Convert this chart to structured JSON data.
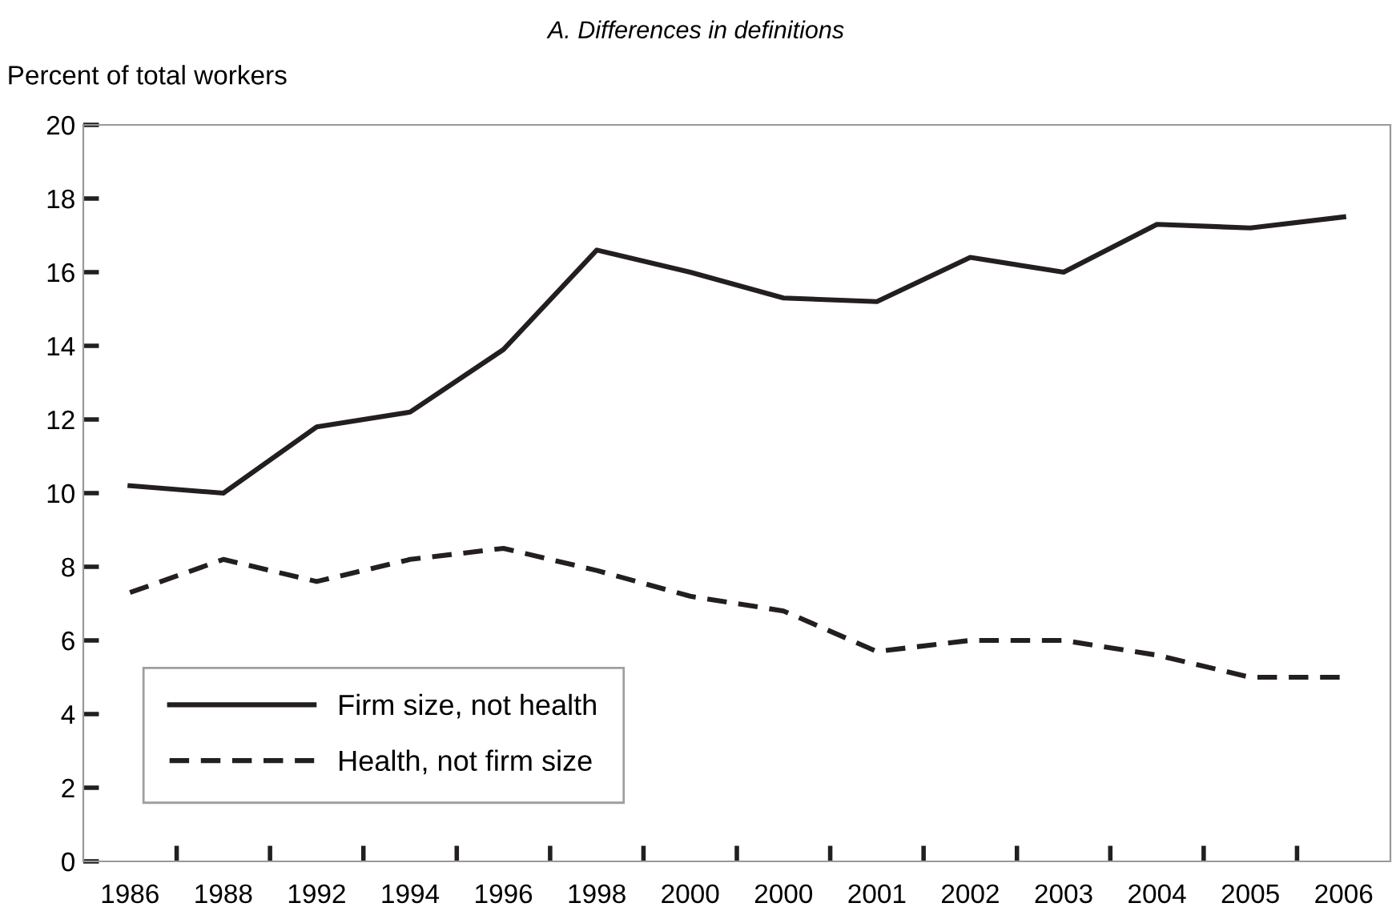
{
  "chart_data": {
    "type": "line",
    "title": "A. Differences in definitions",
    "ylabel": "Percent of total workers",
    "categories": [
      "1986",
      "1988",
      "1992",
      "1994",
      "1996",
      "1998",
      "2000",
      "2000",
      "2001",
      "2002",
      "2003",
      "2004",
      "2005",
      "2006"
    ],
    "series": [
      {
        "name": "Firm size, not health",
        "color": "#231f20",
        "line_style": "solid",
        "values": [
          10.2,
          10.0,
          11.8,
          12.2,
          13.9,
          16.6,
          16.0,
          15.3,
          15.2,
          16.4,
          16.0,
          17.3,
          17.2,
          17.5
        ]
      },
      {
        "name": "Health, not firm size",
        "color": "#231f20",
        "line_style": "dashed",
        "values": [
          7.3,
          8.2,
          7.6,
          8.2,
          8.5,
          7.9,
          7.2,
          6.8,
          5.7,
          6.0,
          6.0,
          5.6,
          5.0,
          5.0
        ]
      }
    ],
    "ylim": [
      0,
      20
    ],
    "yticks": [
      0,
      2,
      4,
      6,
      8,
      10,
      12,
      14,
      16,
      18,
      20
    ],
    "grid": false,
    "legend": "bottom left",
    "marker": "none"
  }
}
